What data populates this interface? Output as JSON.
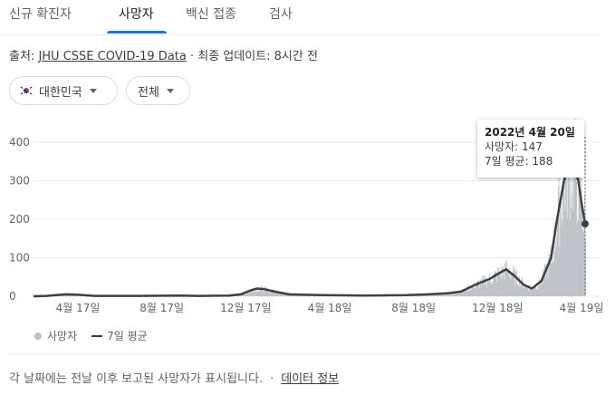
{
  "tabs": [
    {
      "label": "신규 확진자",
      "active": false
    },
    {
      "label": "사망자",
      "active": true
    },
    {
      "label": "백신 접종",
      "active": false
    },
    {
      "label": "검사",
      "active": false
    }
  ],
  "source": {
    "prefix": "출처: ",
    "link": "JHU CSSE COVID-19 Data",
    "suffix": " · 최종 업데이트: 8시간 전"
  },
  "filters": {
    "region": "대한민국",
    "scope": "전체"
  },
  "tooltip": {
    "date": "2022년 4월 20일",
    "deaths": "사망자: 147",
    "avg": "7일 평균: 188"
  },
  "legend": {
    "bars": "사망자",
    "line": "7일 평균"
  },
  "footer": {
    "note": "각 날짜에는 전날 이후 보고된 사망자가 표시됩니다.",
    "sep": "·",
    "link": "데이터 정보"
  },
  "colors": {
    "accent": "#1a73e8",
    "bars": "#bdc1c6",
    "line": "#3c4043"
  },
  "chart_data": {
    "type": "bar",
    "ylim": [
      0,
      400
    ],
    "y_ticks": [
      0,
      100,
      200,
      300,
      400
    ],
    "x_ticks": [
      "4월 17일",
      "8월 17일",
      "12월 17일",
      "4월 18일",
      "8월 18일",
      "12월 18일",
      "4월 19일"
    ],
    "x_start": "2020-02-01",
    "x_end": "2022-04-20",
    "series": [
      {
        "name": "7일 평균",
        "type": "line",
        "points": [
          [
            "2020-02-01",
            0
          ],
          [
            "2020-02-20",
            1
          ],
          [
            "2020-03-05",
            3
          ],
          [
            "2020-03-20",
            5
          ],
          [
            "2020-04-05",
            4
          ],
          [
            "2020-05-01",
            1
          ],
          [
            "2020-07-01",
            1
          ],
          [
            "2020-09-01",
            2
          ],
          [
            "2020-10-01",
            1
          ],
          [
            "2020-11-15",
            2
          ],
          [
            "2020-12-01",
            5
          ],
          [
            "2020-12-15",
            15
          ],
          [
            "2020-12-25",
            20
          ],
          [
            "2021-01-05",
            18
          ],
          [
            "2021-01-20",
            12
          ],
          [
            "2021-02-10",
            5
          ],
          [
            "2021-03-01",
            4
          ],
          [
            "2021-04-01",
            3
          ],
          [
            "2021-06-01",
            2
          ],
          [
            "2021-08-01",
            3
          ],
          [
            "2021-09-01",
            5
          ],
          [
            "2021-10-01",
            8
          ],
          [
            "2021-10-20",
            12
          ],
          [
            "2021-11-10",
            30
          ],
          [
            "2021-12-01",
            45
          ],
          [
            "2021-12-15",
            60
          ],
          [
            "2021-12-25",
            70
          ],
          [
            "2022-01-05",
            55
          ],
          [
            "2022-01-20",
            30
          ],
          [
            "2022-02-01",
            20
          ],
          [
            "2022-02-15",
            40
          ],
          [
            "2022-03-01",
            100
          ],
          [
            "2022-03-10",
            200
          ],
          [
            "2022-03-20",
            300
          ],
          [
            "2022-03-28",
            345
          ],
          [
            "2022-04-03",
            340
          ],
          [
            "2022-04-10",
            300
          ],
          [
            "2022-04-15",
            240
          ],
          [
            "2022-04-20",
            188
          ]
        ]
      },
      {
        "name": "사망자",
        "type": "bar",
        "note": "daily values, generated around the 7-day average"
      }
    ]
  }
}
